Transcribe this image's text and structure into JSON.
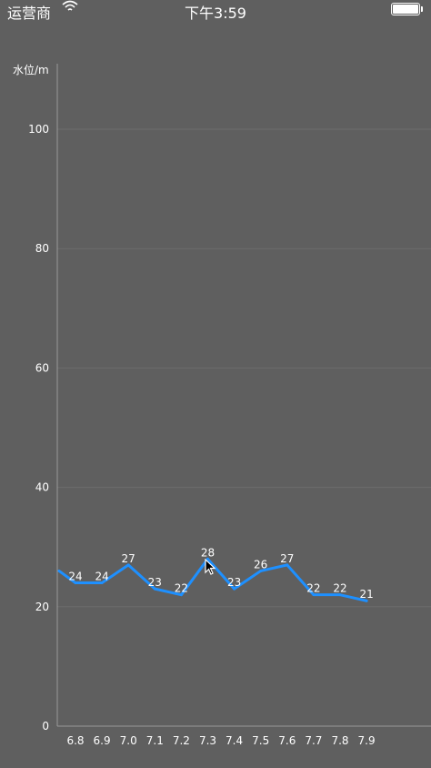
{
  "status_bar": {
    "carrier": "运营商",
    "time": "下午3:59",
    "wifi_icon": "wifi-icon",
    "battery_icon": "battery-icon"
  },
  "chart_data": {
    "type": "line",
    "ylabel": "水位/m",
    "xlabel": "",
    "title": "",
    "ylim": [
      0,
      110
    ],
    "yticks": [
      0,
      20,
      40,
      60,
      80,
      100
    ],
    "categories": [
      "6.8",
      "6.9",
      "7.0",
      "7.1",
      "7.2",
      "7.3",
      "7.4",
      "7.5",
      "7.6",
      "7.7",
      "7.8",
      "7.9"
    ],
    "series": [
      {
        "values": [
          24,
          24,
          27,
          23,
          22,
          28,
          23,
          26,
          27,
          22,
          22,
          21
        ],
        "line_start_value": 26,
        "color": "#1e90ff"
      }
    ],
    "grid": true,
    "colors": {
      "background": "#5f5f5f",
      "grid": "#6c6c6c",
      "axis": "#9a9a9a",
      "text": "#ffffff",
      "line": "#1e90ff"
    }
  }
}
